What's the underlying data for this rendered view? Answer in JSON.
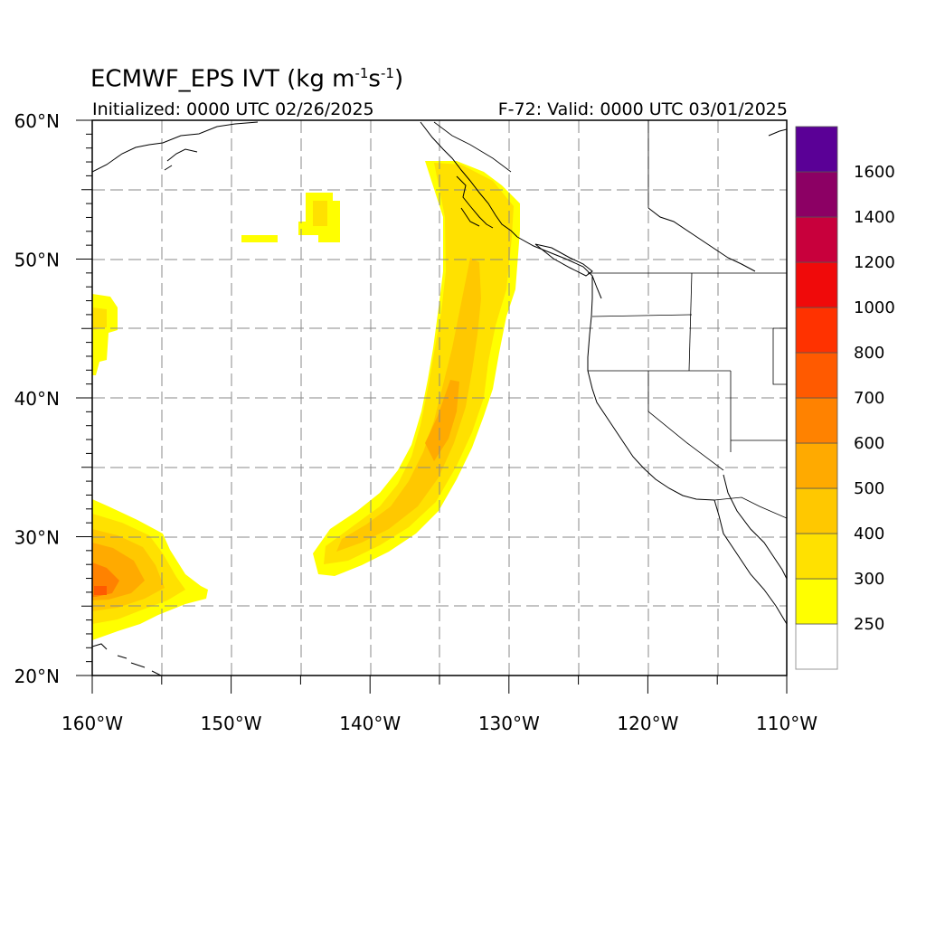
{
  "header": {
    "title_main": "ECMWF_EPS IVT (kg m",
    "title_sup1": "-1",
    "title_mid": "s",
    "title_sup2": "-1",
    "title_end": ")",
    "initialized": "Initialized: 0000 UTC 02/26/2025",
    "valid": "F-72: Valid: 0000 UTC 03/01/2025"
  },
  "map": {
    "lon_range": [
      -160,
      -110
    ],
    "lat_range": [
      20,
      60
    ],
    "grid": true,
    "grid_style": "dashed",
    "lon_labels": [
      {
        "lon": -160,
        "label": "160°W"
      },
      {
        "lon": -150,
        "label": "150°W"
      },
      {
        "lon": -140,
        "label": "140°W"
      },
      {
        "lon": -130,
        "label": "130°W"
      },
      {
        "lon": -120,
        "label": "120°W"
      },
      {
        "lon": -110,
        "label": "110°W"
      }
    ],
    "lat_labels": [
      {
        "lat": 60,
        "label": "60°N"
      },
      {
        "lat": 50,
        "label": "50°N"
      },
      {
        "lat": 40,
        "label": "40°N"
      },
      {
        "lat": 30,
        "label": "30°N"
      },
      {
        "lat": 20,
        "label": "20°N"
      }
    ]
  },
  "colorbar": {
    "levels": [
      {
        "label": "250",
        "color": "#ffff00"
      },
      {
        "label": "300",
        "color": "#ffe100"
      },
      {
        "label": "400",
        "color": "#ffc800"
      },
      {
        "label": "500",
        "color": "#ffaa00"
      },
      {
        "label": "600",
        "color": "#ff8200"
      },
      {
        "label": "700",
        "color": "#ff5a00"
      },
      {
        "label": "800",
        "color": "#ff3200"
      },
      {
        "label": "1000",
        "color": "#f00a0a"
      },
      {
        "label": "1200",
        "color": "#c8003c"
      },
      {
        "label": "1400",
        "color": "#8c0064"
      },
      {
        "label": "1600",
        "color": "#5a0096"
      }
    ],
    "below_color": "#ffffff"
  },
  "features": [
    {
      "name": "Atmospheric river (130W–145W)",
      "max_level": "500"
    },
    {
      "name": "Subtropical IVT near Hawaii",
      "max_level": "700"
    }
  ]
}
